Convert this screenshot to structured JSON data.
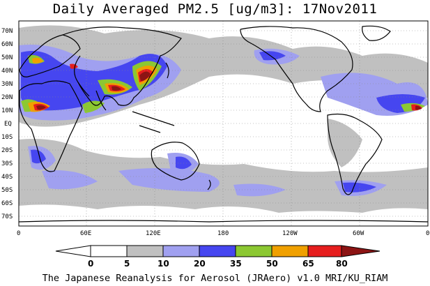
{
  "title": "Daily Averaged PM2.5 [ug/m3]: 17Nov2011",
  "footer": "The Japanese Reanalysis for Aerosol (JRAero) v1.0 MRI/KU_RIAM",
  "lat_labels": [
    "70N",
    "60N",
    "50N",
    "40N",
    "30N",
    "20N",
    "10N",
    "EQ",
    "10S",
    "20S",
    "30S",
    "40S",
    "50S",
    "60S",
    "70S"
  ],
  "lon_labels": [
    "0",
    "60E",
    "120E",
    "180",
    "120W",
    "60W",
    "0"
  ],
  "colorbar": {
    "ticks": [
      "0",
      "5",
      "10",
      "20",
      "35",
      "50",
      "65",
      "80"
    ],
    "colors": [
      "#ffffff",
      "#ffffff",
      "#c0c0c0",
      "#a0a0f0",
      "#4646f0",
      "#8cc832",
      "#f0a000",
      "#e61e1e",
      "#8c1414"
    ]
  },
  "levels": {
    "l5": "#c0c0c0",
    "l10": "#a0a0f0",
    "l20": "#4646f0",
    "l35": "#8cc832",
    "l50": "#f0a000",
    "l65": "#e61e1e",
    "l80": "#8c1414"
  }
}
